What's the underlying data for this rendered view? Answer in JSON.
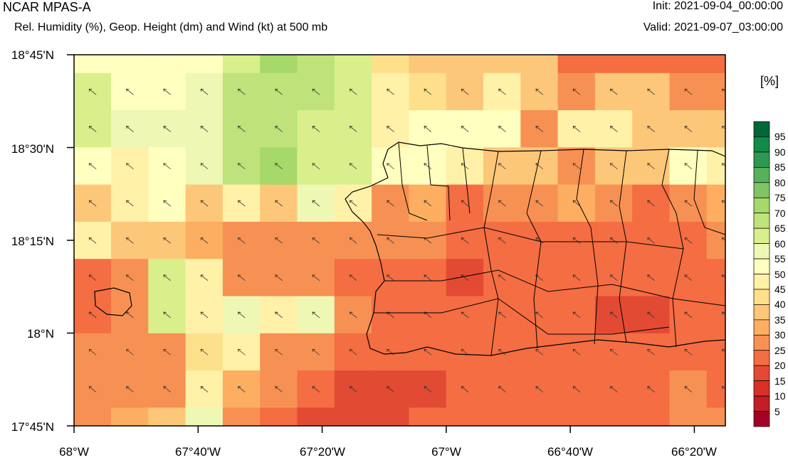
{
  "header": {
    "model": "NCAR MPAS-A",
    "field": "Rel. Humidity (%), Geop. Height (dm) and Wind (kt) at 500 mb",
    "init": "Init: 2021-09-04_00:00:00",
    "valid": "Valid: 2021-09-07_03:00:00"
  },
  "axes": {
    "lat_labels": [
      "18°45'N",
      "18°30'N",
      "18°15'N",
      "18°N",
      "17°45'N"
    ],
    "lon_labels": [
      "68°W",
      "67°40'W",
      "67°20'W",
      "67°W",
      "66°40'W",
      "66°20'W"
    ]
  },
  "colorbar": {
    "units": "[%]",
    "levels": [
      "5",
      "10",
      "15",
      "20",
      "25",
      "30",
      "35",
      "40",
      "45",
      "50",
      "55",
      "60",
      "65",
      "70",
      "75",
      "80",
      "85",
      "90",
      "95"
    ],
    "colors": [
      "#a50026",
      "#c41d27",
      "#d73027",
      "#e34a33",
      "#f46d43",
      "#f79153",
      "#fdae61",
      "#fdc779",
      "#fee08b",
      "#fff1a8",
      "#ffffbf",
      "#eef7b4",
      "#d9ef8b",
      "#bfe37a",
      "#a6d96a",
      "#7fc565",
      "#57b05a",
      "#2e9850",
      "#138a48",
      "#006837"
    ]
  },
  "chart_data": {
    "type": "heatmap",
    "title": "Rel. Humidity (%), Geop. Height (dm) and Wind (kt) at 500 mb",
    "x_range_lon": [
      -68.0,
      -66.25
    ],
    "y_range_lat": [
      17.75,
      18.75
    ],
    "grid_rows_north_to_south": [
      [
        50,
        50,
        50,
        50,
        62,
        70,
        67,
        62,
        43,
        35,
        35,
        38,
        38,
        22,
        22,
        22,
        22,
        22
      ],
      [
        62,
        50,
        50,
        55,
        65,
        65,
        67,
        62,
        48,
        43,
        35,
        48,
        38,
        28,
        35,
        35,
        25,
        28
      ],
      [
        62,
        58,
        58,
        55,
        65,
        65,
        62,
        62,
        48,
        50,
        50,
        50,
        28,
        48,
        48,
        38,
        35,
        35
      ],
      [
        52,
        48,
        50,
        58,
        65,
        72,
        62,
        60,
        52,
        52,
        48,
        38,
        35,
        28,
        35,
        35,
        50,
        45
      ],
      [
        38,
        48,
        50,
        35,
        48,
        38,
        58,
        45,
        28,
        33,
        22,
        25,
        28,
        30,
        28,
        22,
        28,
        33
      ],
      [
        48,
        38,
        38,
        33,
        28,
        28,
        28,
        28,
        28,
        28,
        22,
        22,
        22,
        22,
        22,
        22,
        22,
        25
      ],
      [
        22,
        28,
        60,
        45,
        28,
        28,
        28,
        22,
        22,
        22,
        17,
        22,
        22,
        22,
        22,
        22,
        22,
        22
      ],
      [
        22,
        28,
        62,
        45,
        55,
        48,
        58,
        28,
        22,
        22,
        22,
        22,
        22,
        22,
        17,
        17,
        22,
        22
      ],
      [
        25,
        25,
        28,
        40,
        48,
        28,
        28,
        22,
        22,
        22,
        22,
        22,
        22,
        22,
        22,
        22,
        22,
        22
      ],
      [
        25,
        25,
        28,
        48,
        33,
        28,
        22,
        17,
        17,
        17,
        22,
        22,
        22,
        22,
        22,
        22,
        28,
        22
      ],
      [
        28,
        33,
        35,
        58,
        28,
        22,
        17,
        17,
        17,
        22,
        22,
        22,
        22,
        22,
        22,
        22,
        28,
        28
      ]
    ],
    "wind_direction_note": "SE flow",
    "xlabel": "",
    "ylabel": ""
  }
}
